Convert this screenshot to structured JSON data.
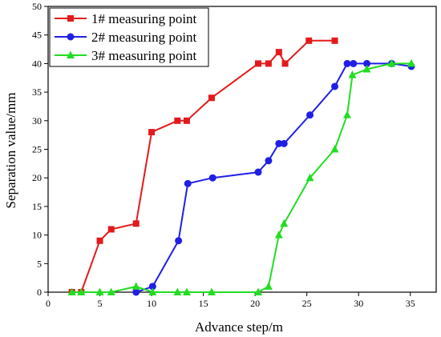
{
  "chart_data": {
    "type": "line",
    "xlabel": "Advance step/m",
    "ylabel": "Separation value/mm",
    "xlim": [
      0,
      37.5
    ],
    "ylim": [
      0,
      50
    ],
    "xticks": [
      0,
      5,
      10,
      15,
      20,
      25,
      30,
      35
    ],
    "yticks": [
      0,
      5,
      10,
      15,
      20,
      25,
      30,
      35,
      40,
      45,
      50
    ],
    "grid": false,
    "legend_position": "top-left",
    "series": [
      {
        "name": "1# measuring point",
        "color": "#e31a1c",
        "marker": "square",
        "points": [
          [
            2.3,
            0
          ],
          [
            3.2,
            0
          ],
          [
            5.0,
            9
          ],
          [
            6.1,
            11
          ],
          [
            8.5,
            12
          ],
          [
            10.0,
            28
          ],
          [
            12.5,
            30
          ],
          [
            13.4,
            30
          ],
          [
            15.8,
            34
          ],
          [
            20.3,
            40
          ],
          [
            21.3,
            40
          ],
          [
            22.3,
            42
          ],
          [
            22.9,
            40
          ],
          [
            25.2,
            44
          ],
          [
            27.7,
            44
          ]
        ]
      },
      {
        "name": "2# measuring point",
        "color": "#1f1fe6",
        "marker": "circle",
        "points": [
          [
            8.5,
            0
          ],
          [
            10.1,
            1
          ],
          [
            12.6,
            9
          ],
          [
            13.5,
            19
          ],
          [
            15.9,
            20
          ],
          [
            20.3,
            21
          ],
          [
            21.3,
            23
          ],
          [
            22.3,
            26
          ],
          [
            22.8,
            26
          ],
          [
            25.3,
            31
          ],
          [
            27.7,
            36
          ],
          [
            28.9,
            40
          ],
          [
            29.5,
            40
          ],
          [
            30.8,
            40
          ],
          [
            33.2,
            40
          ],
          [
            35.1,
            39.5
          ]
        ]
      },
      {
        "name": "3# measuring point",
        "color": "#22dd22",
        "marker": "triangle",
        "points": [
          [
            2.3,
            0
          ],
          [
            3.2,
            0
          ],
          [
            5.0,
            0
          ],
          [
            6.1,
            0
          ],
          [
            8.5,
            1
          ],
          [
            10.1,
            0
          ],
          [
            12.5,
            0
          ],
          [
            13.4,
            0
          ],
          [
            15.8,
            0
          ],
          [
            20.3,
            0
          ],
          [
            21.3,
            1
          ],
          [
            22.3,
            10
          ],
          [
            22.8,
            12
          ],
          [
            25.3,
            20
          ],
          [
            27.7,
            25
          ],
          [
            28.9,
            31
          ],
          [
            29.4,
            38
          ],
          [
            30.8,
            39
          ],
          [
            33.2,
            40
          ],
          [
            35.1,
            40
          ]
        ]
      }
    ]
  }
}
